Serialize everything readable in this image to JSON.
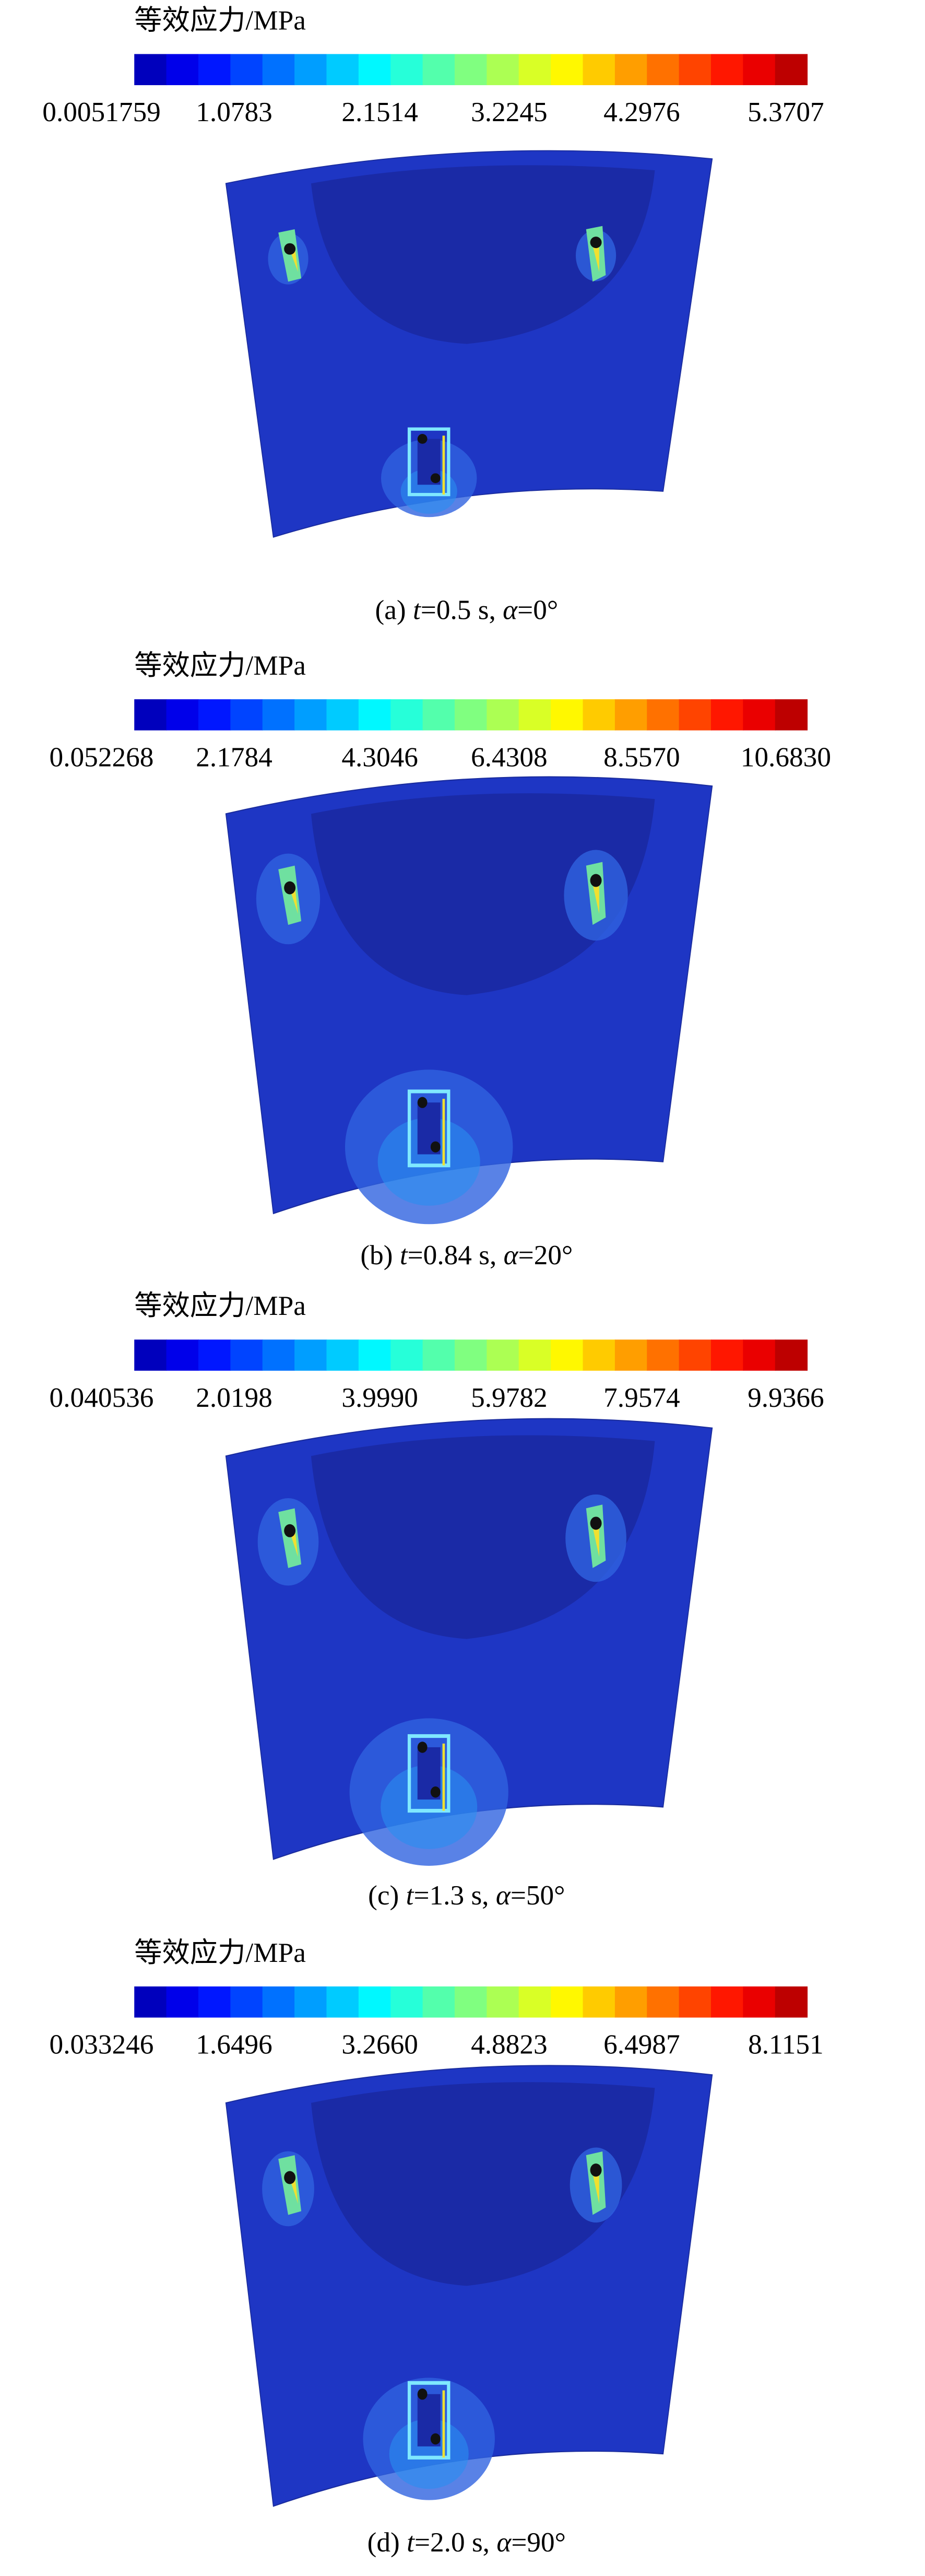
{
  "panels": [
    {
      "legend_title": "等效应力/MPa",
      "ticks": [
        "0.0051759",
        "1.0783",
        "2.1514",
        "3.2245",
        "4.2976",
        "5.3707"
      ],
      "caption": [
        "(a) ",
        "t",
        "=0.5 s, ",
        "α",
        "=0°"
      ]
    },
    {
      "legend_title": "等效应力/MPa",
      "ticks": [
        "0.052268",
        "2.1784",
        "4.3046",
        "6.4308",
        "8.5570",
        "10.6830"
      ],
      "caption": [
        "(b) ",
        "t",
        "=0.84 s, ",
        "α",
        "=20°"
      ]
    },
    {
      "legend_title": "等效应力/MPa",
      "ticks": [
        "0.040536",
        "2.0198",
        "3.9990",
        "5.9782",
        "7.9574",
        "9.9366"
      ],
      "caption": [
        "(c) ",
        "t",
        "=1.3 s, ",
        "α",
        "=50°"
      ]
    },
    {
      "legend_title": "等效应力/MPa",
      "ticks": [
        "0.033246",
        "1.6496",
        "3.2660",
        "4.8823",
        "6.4987",
        "8.1151"
      ],
      "caption": [
        "(d) ",
        "t",
        "=2.0 s, ",
        "α",
        "=90°"
      ]
    }
  ]
}
